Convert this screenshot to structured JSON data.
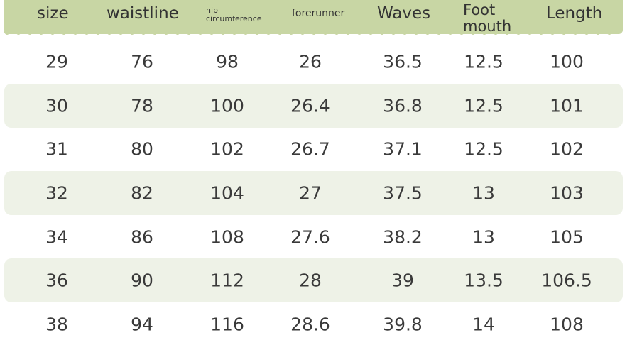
{
  "table": {
    "header": [
      "size",
      "waistline",
      "hip circumference",
      "forerunner",
      "Waves",
      "Foot mouth",
      "Length"
    ],
    "rows": [
      [
        "29",
        "76",
        "98",
        "26",
        "36.5",
        "12.5",
        "100"
      ],
      [
        "30",
        "78",
        "100",
        "26.4",
        "36.8",
        "12.5",
        "101"
      ],
      [
        "31",
        "80",
        "102",
        "26.7",
        "37.1",
        "12.5",
        "102"
      ],
      [
        "32",
        "82",
        "104",
        "27",
        "37.5",
        "13",
        "103"
      ],
      [
        "34",
        "86",
        "108",
        "27.6",
        "38.2",
        "13",
        "105"
      ],
      [
        "36",
        "90",
        "112",
        "28",
        "39",
        "13.5",
        "106.5"
      ],
      [
        "38",
        "94",
        "116",
        "28.6",
        "39.8",
        "14",
        "108"
      ]
    ]
  }
}
